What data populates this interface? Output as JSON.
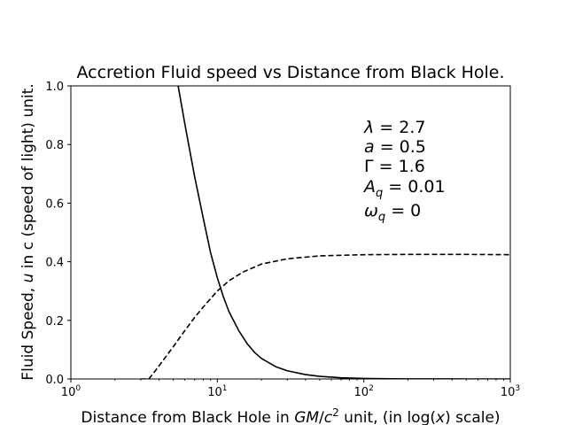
{
  "chart_data": {
    "type": "line",
    "title": "Accretion Fluid speed vs Distance from Black Hole.",
    "xlabel": "Distance from Black Hole in GM/c² unit, (in log(x) scale)",
    "ylabel": "Fluid Speed, u in c (speed of light) unit.",
    "xscale": "log",
    "xlim": [
      1,
      1000
    ],
    "ylim": [
      0,
      1.0
    ],
    "grid": false,
    "x_ticks": [
      {
        "value": 1,
        "base": "10",
        "exp": "0"
      },
      {
        "value": 10,
        "base": "10",
        "exp": "1"
      },
      {
        "value": 100,
        "base": "10",
        "exp": "2"
      },
      {
        "value": 1000,
        "base": "10",
        "exp": "3"
      }
    ],
    "y_ticks": [
      "0.0",
      "0.2",
      "0.4",
      "0.6",
      "0.8",
      "1.0"
    ],
    "annotations": [
      "λ = 2.7",
      "a = 0.5",
      "Γ = 1.6",
      "A_q = 0.01",
      "ω_q = 0"
    ],
    "series": [
      {
        "style": "solid",
        "color": "#000000",
        "x": [
          5.4,
          6,
          7,
          8,
          9,
          10,
          11,
          12,
          14,
          16,
          18,
          20,
          25,
          30,
          40,
          50,
          70,
          100,
          150,
          200,
          300,
          500,
          700,
          1000
        ],
        "y": [
          1.0,
          0.87,
          0.69,
          0.55,
          0.43,
          0.345,
          0.28,
          0.23,
          0.165,
          0.12,
          0.09,
          0.07,
          0.042,
          0.028,
          0.015,
          0.009,
          0.004,
          0.0018,
          0.0008,
          0.0004,
          0.0001,
          0.0,
          0.0,
          0.0
        ]
      },
      {
        "style": "dashed",
        "color": "#000000",
        "x": [
          3.0,
          3.4,
          3.6,
          4,
          5,
          6,
          7,
          8,
          10,
          12,
          15,
          20,
          30,
          50,
          100,
          200,
          500,
          1000
        ],
        "y": [
          0.0,
          0.0,
          0.015,
          0.045,
          0.11,
          0.165,
          0.21,
          0.245,
          0.3,
          0.335,
          0.365,
          0.392,
          0.41,
          0.42,
          0.424,
          0.425,
          0.425,
          0.424
        ]
      }
    ]
  }
}
